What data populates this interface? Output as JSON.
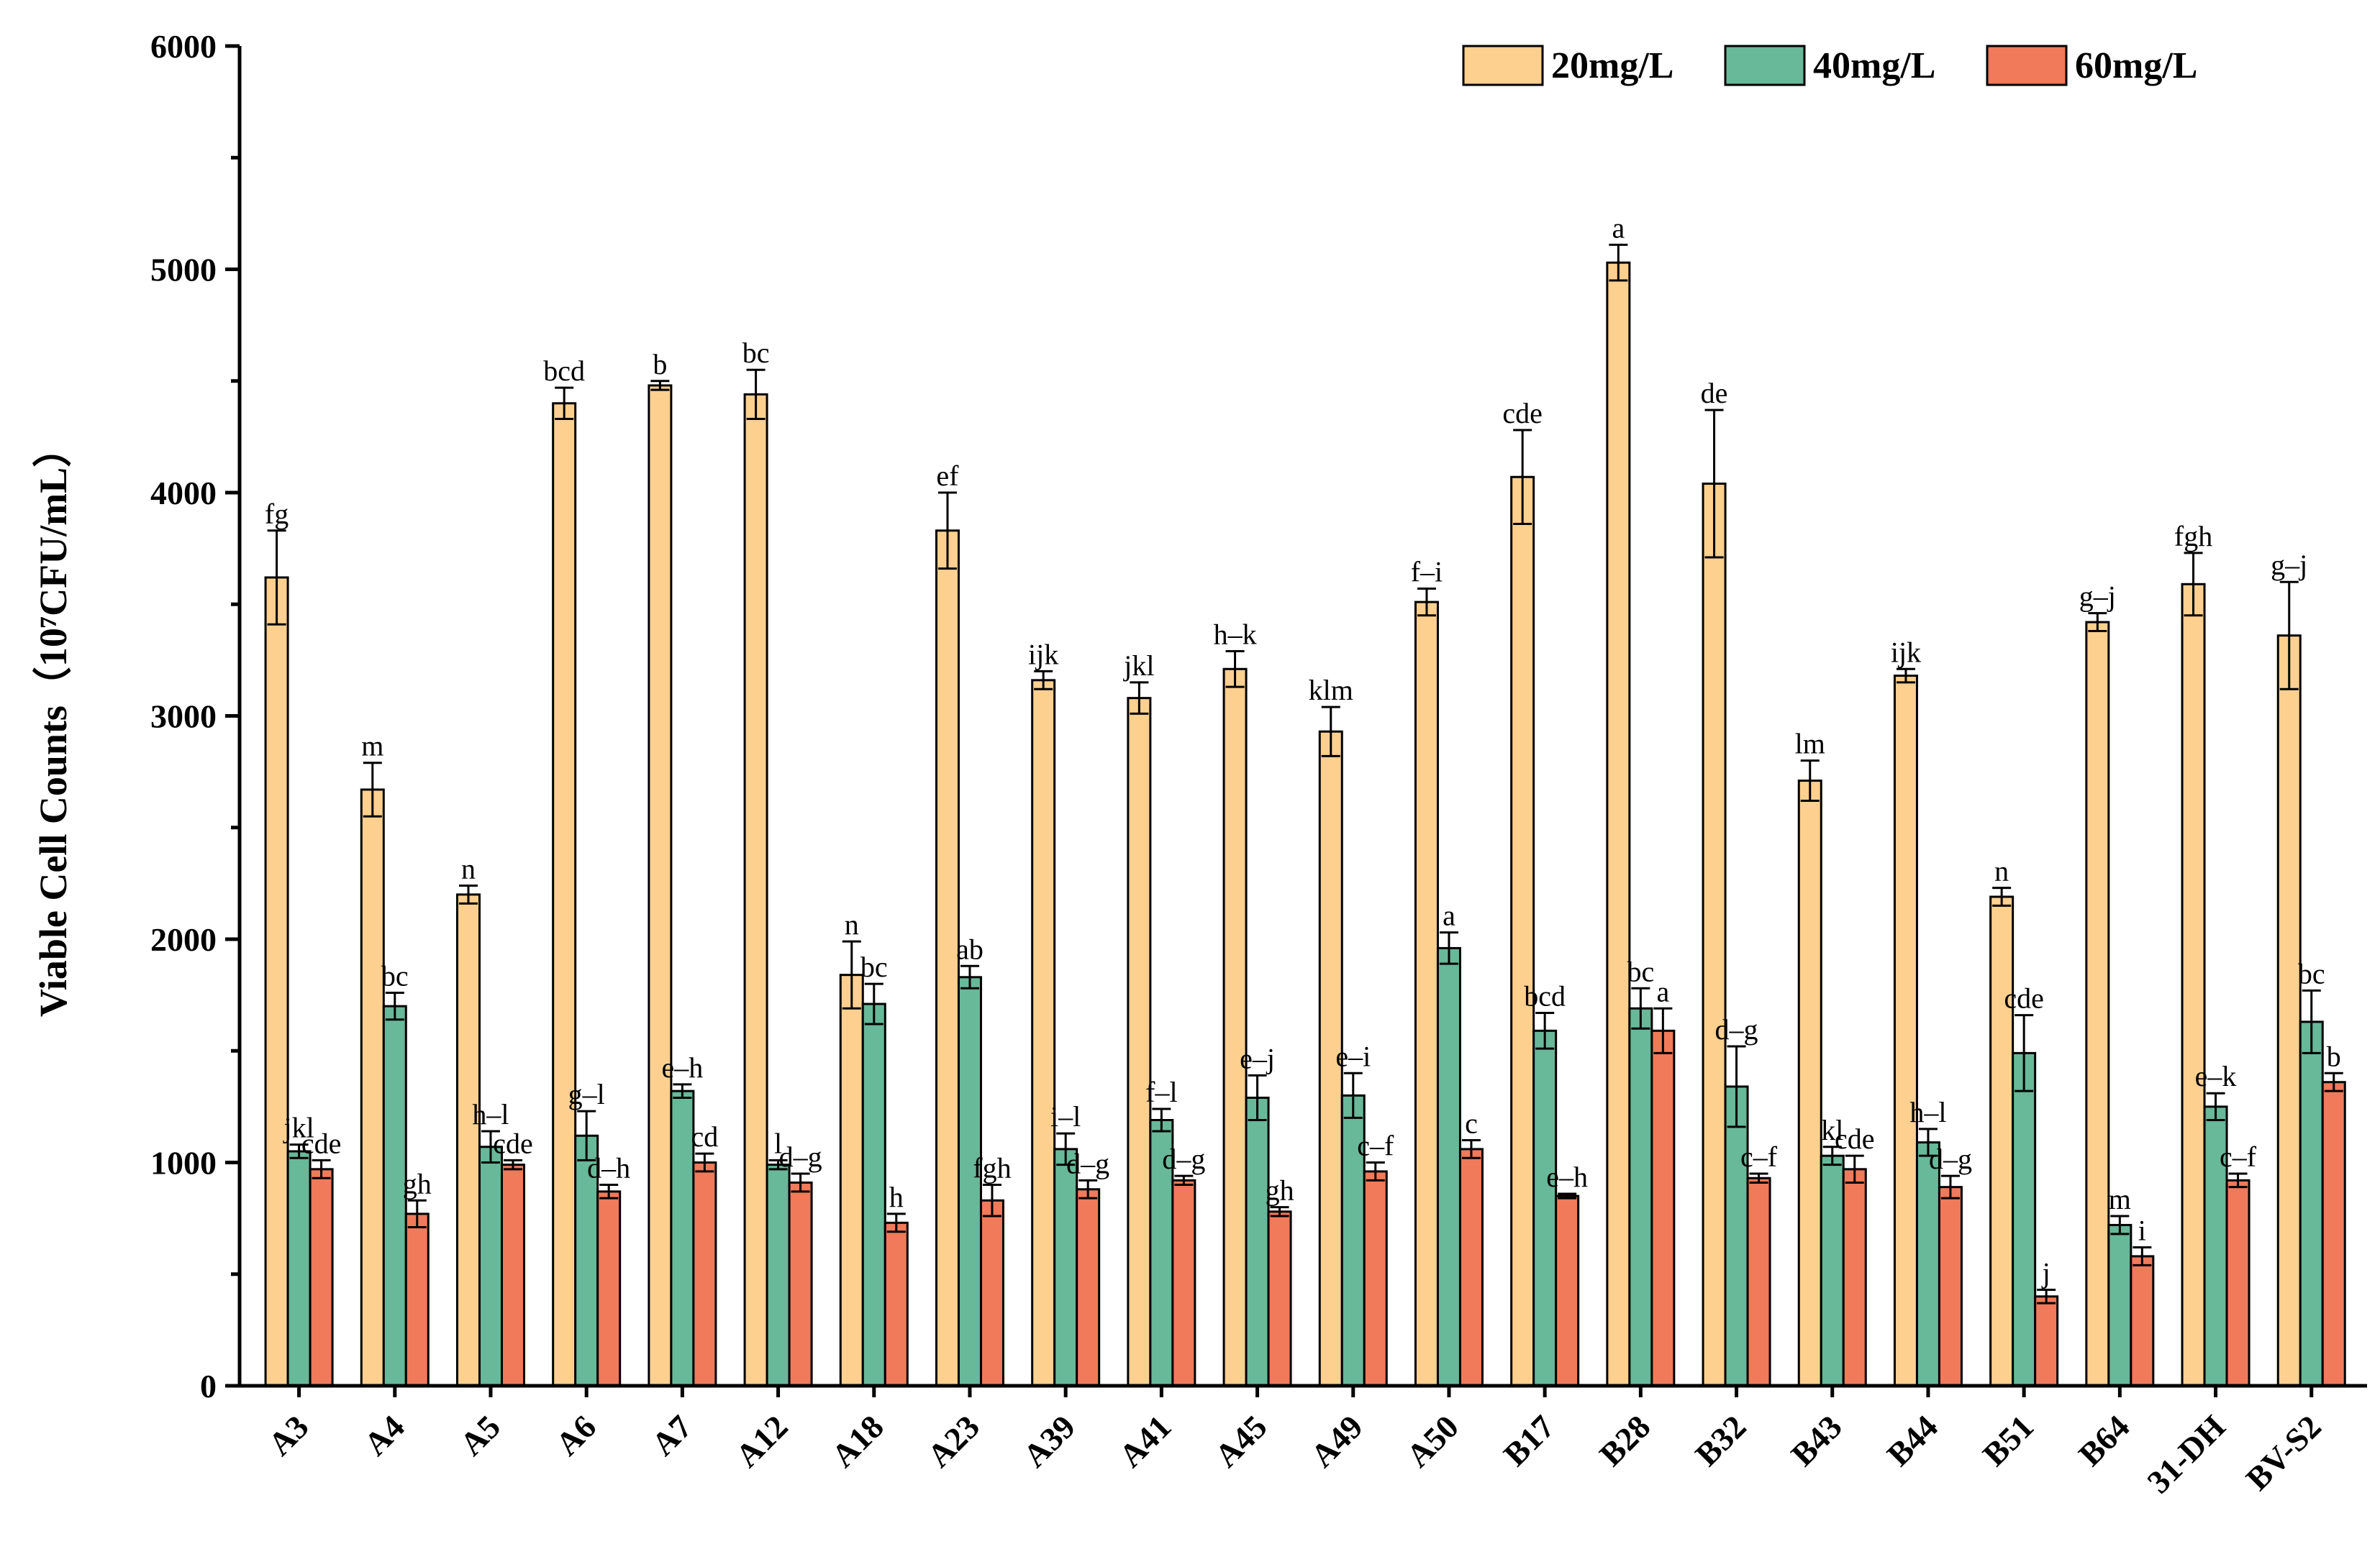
{
  "chart_data": {
    "type": "bar",
    "title": "",
    "xlabel": "",
    "ylabel": "Viable Cell Counts（10⁷CFU/mL）",
    "ylim": [
      0,
      6000
    ],
    "yticks": [
      0,
      1000,
      2000,
      3000,
      4000,
      5000,
      6000
    ],
    "legend_position": "top-right",
    "categories": [
      "A3",
      "A4",
      "A5",
      "A6",
      "A7",
      "A12",
      "A18",
      "A23",
      "A39",
      "A41",
      "A45",
      "A49",
      "A50",
      "B17",
      "B28",
      "B32",
      "B43",
      "B44",
      "B51",
      "B64",
      "31-DH",
      "BV-S2"
    ],
    "series": [
      {
        "name": "20mg/L",
        "color": "#fdd08f",
        "values": [
          3620,
          2670,
          2200,
          4400,
          4480,
          4440,
          1840,
          3830,
          3160,
          3080,
          3210,
          2930,
          3510,
          4070,
          5030,
          4040,
          2710,
          3180,
          2190,
          3420,
          3590,
          3360
        ],
        "errors": [
          210,
          120,
          40,
          70,
          20,
          110,
          150,
          170,
          40,
          70,
          80,
          110,
          60,
          210,
          80,
          330,
          90,
          30,
          40,
          40,
          140,
          240
        ],
        "labels": [
          "fg",
          "m",
          "n",
          "bcd",
          "b",
          "bc",
          "n",
          "ef",
          "ijk",
          "jkl",
          "h–k",
          "klm",
          "f–i",
          "cde",
          "a",
          "de",
          "lm",
          "ijk",
          "n",
          "g–j",
          "fgh",
          "g–j"
        ]
      },
      {
        "name": "40mg/L",
        "color": "#68b89a",
        "values": [
          1050,
          1700,
          1070,
          1120,
          1320,
          990,
          1710,
          1830,
          1060,
          1190,
          1290,
          1300,
          1960,
          1590,
          1690,
          1340,
          1030,
          1090,
          1490,
          720,
          1250,
          1630
        ],
        "errors": [
          30,
          60,
          70,
          110,
          30,
          20,
          90,
          50,
          70,
          50,
          100,
          100,
          70,
          80,
          90,
          180,
          40,
          60,
          170,
          40,
          60,
          140
        ],
        "labels": [
          "jkl",
          "bc",
          "h–l",
          "g–l",
          "e–h",
          "l",
          "bc",
          "ab",
          "i–l",
          "f–l",
          "e–j",
          "e–i",
          "a",
          "bcd",
          "bc",
          "d–g",
          "kl",
          "h–l",
          "cde",
          "m",
          "e–k",
          "bc"
        ]
      },
      {
        "name": "60mg/L",
        "color": "#f07a5a",
        "values": [
          970,
          770,
          990,
          870,
          1000,
          910,
          730,
          830,
          880,
          920,
          780,
          960,
          1060,
          850,
          1590,
          930,
          970,
          890,
          400,
          580,
          920,
          1360
        ],
        "errors": [
          40,
          60,
          20,
          30,
          40,
          40,
          40,
          70,
          40,
          20,
          20,
          40,
          40,
          10,
          100,
          20,
          60,
          50,
          30,
          40,
          30,
          40
        ],
        "labels": [
          "cde",
          "gh",
          "cde",
          "d–h",
          "cd",
          "d–g",
          "h",
          "fgh",
          "d–g",
          "d–g",
          "gh",
          "c–f",
          "c",
          "e–h",
          "a",
          "c–f",
          "cde",
          "d–g",
          "j",
          "i",
          "c–f",
          "b"
        ]
      }
    ]
  }
}
